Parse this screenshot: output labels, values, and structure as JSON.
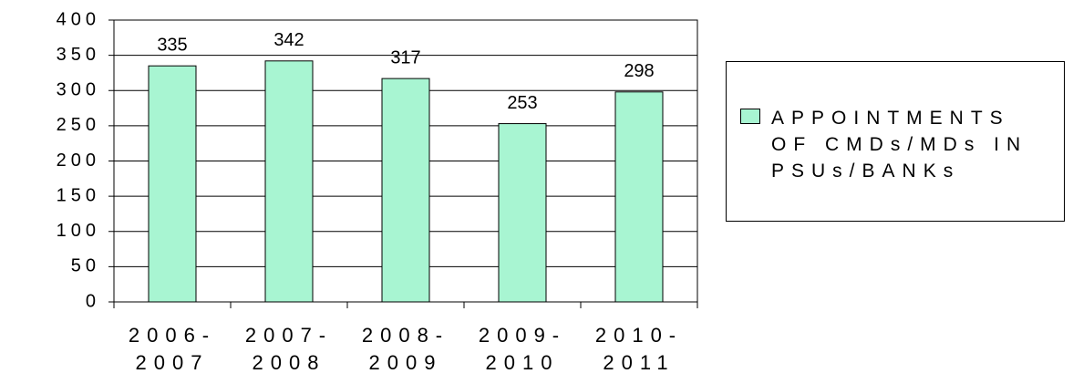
{
  "chart_data": {
    "type": "bar",
    "categories": [
      "2006-2007",
      "2007-2008",
      "2008-2009",
      "2009-2010",
      "2010-2011"
    ],
    "series": [
      {
        "name": "APPOINTMENTS OF CMDs/MDs IN PSUs/BANKs",
        "color": "#a8f5d2",
        "values": [
          335,
          342,
          317,
          253,
          298
        ]
      }
    ],
    "ylim": [
      0,
      400
    ],
    "yticks": [
      0,
      50,
      100,
      150,
      200,
      250,
      300,
      350,
      400
    ],
    "grid": true,
    "legend": "right"
  }
}
